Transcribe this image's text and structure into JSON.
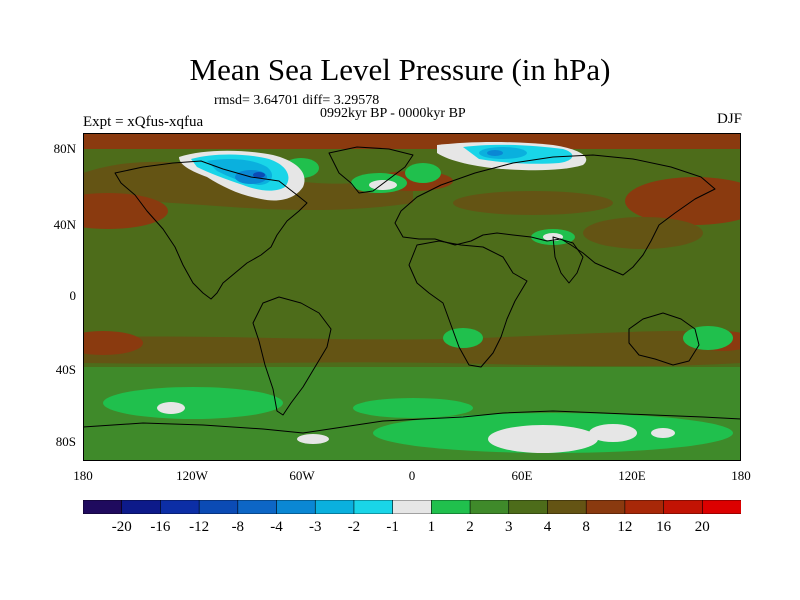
{
  "title": "Mean Sea Level Pressure (in hPa)",
  "stats": "rmsd= 3.64701 diff= 3.29578",
  "experiment": "Expt = xQfus-xqfua",
  "period": "0992kyr BP - 0000kyr BP",
  "season": "DJF",
  "lat_ticks": [
    "80N",
    "40N",
    "0",
    "40S",
    "80S"
  ],
  "lon_ticks": [
    "180",
    "120W",
    "60W",
    "0",
    "60E",
    "120E",
    "180"
  ],
  "colorbar": {
    "labels": [
      "-20",
      "-16",
      "-12",
      "-8",
      "-4",
      "-3",
      "-2",
      "-1",
      "1",
      "2",
      "3",
      "4",
      "8",
      "12",
      "16",
      "20"
    ],
    "colors": [
      "#1f0a5e",
      "#0d1a8a",
      "#0c2ea6",
      "#0b4bb5",
      "#0d66c6",
      "#0a87d4",
      "#0ab0de",
      "#19d5e8",
      "#e6e6e6",
      "#20c04d",
      "#3f8a2a",
      "#4d6c1a",
      "#645414",
      "#8a3a0f",
      "#a82808",
      "#c21304",
      "#dc0000"
    ]
  },
  "map_colors": {
    "base": "#4d6c1a",
    "darker": "#645414",
    "brown": "#8a3a0f",
    "green": "#3f8a2a",
    "bright": "#20c04d",
    "white": "#e6e6e6",
    "cyan": "#19d5e8",
    "lightblue": "#0ab0de",
    "blue": "#0a87d4",
    "deepblue": "#0b4bb5"
  }
}
